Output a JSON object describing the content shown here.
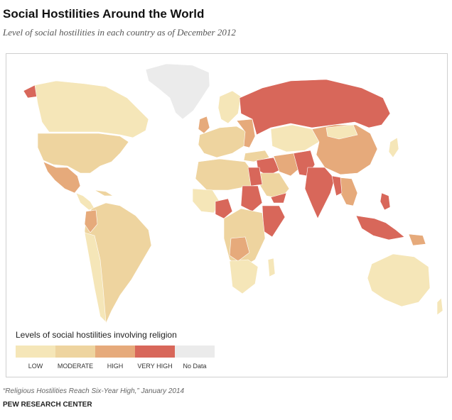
{
  "title": "Social Hostilities Around the World",
  "subtitle": "Level of social hostilities in each country as of December 2012",
  "legend": {
    "title": "Levels of social hostilities involving religion",
    "items": [
      {
        "label": "LOW",
        "color": "#f5e6b8"
      },
      {
        "label": "MODERATE",
        "color": "#eed49f"
      },
      {
        "label": "HIGH",
        "color": "#e6aa7b"
      },
      {
        "label": "VERY HIGH",
        "color": "#d8675a"
      },
      {
        "label": "No Data",
        "color": "#ebebeb"
      }
    ]
  },
  "source": "“Religious Hostilities Reach Six-Year High,”  January 2014",
  "org": "PEW RESEARCH CENTER"
}
